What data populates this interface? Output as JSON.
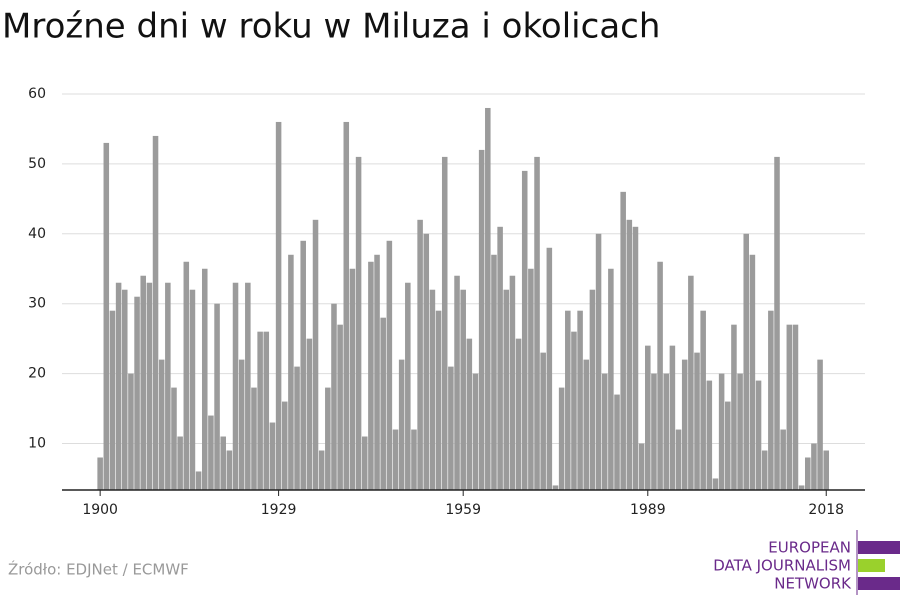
{
  "chart_data": {
    "type": "bar",
    "title": "Mroźne dni w roku w Miluza i okolicach",
    "x": [
      1900,
      1901,
      1902,
      1903,
      1904,
      1905,
      1906,
      1907,
      1908,
      1909,
      1910,
      1911,
      1912,
      1913,
      1914,
      1915,
      1916,
      1917,
      1918,
      1919,
      1920,
      1921,
      1922,
      1923,
      1924,
      1925,
      1926,
      1927,
      1928,
      1929,
      1930,
      1931,
      1932,
      1933,
      1934,
      1935,
      1936,
      1937,
      1938,
      1939,
      1940,
      1941,
      1942,
      1943,
      1944,
      1945,
      1946,
      1947,
      1948,
      1949,
      1950,
      1951,
      1952,
      1953,
      1954,
      1955,
      1956,
      1957,
      1958,
      1959,
      1960,
      1961,
      1962,
      1963,
      1964,
      1965,
      1966,
      1967,
      1968,
      1969,
      1970,
      1971,
      1972,
      1973,
      1974,
      1975,
      1976,
      1977,
      1978,
      1979,
      1980,
      1981,
      1982,
      1983,
      1984,
      1985,
      1986,
      1987,
      1988,
      1989,
      1990,
      1991,
      1992,
      1993,
      1994,
      1995,
      1996,
      1997,
      1998,
      1999,
      2000,
      2001,
      2002,
      2003,
      2004,
      2005,
      2006,
      2007,
      2008,
      2009,
      2010,
      2011,
      2012,
      2013,
      2014,
      2015,
      2016,
      2017,
      2018
    ],
    "values": [
      8,
      53,
      29,
      33,
      32,
      20,
      31,
      34,
      33,
      54,
      22,
      33,
      18,
      11,
      36,
      32,
      6,
      35,
      14,
      30,
      11,
      9,
      33,
      22,
      33,
      18,
      26,
      26,
      13,
      56,
      16,
      37,
      21,
      39,
      25,
      42,
      9,
      18,
      30,
      27,
      56,
      35,
      51,
      11,
      36,
      37,
      28,
      39,
      12,
      22,
      33,
      12,
      42,
      40,
      32,
      29,
      51,
      21,
      34,
      32,
      25,
      20,
      52,
      58,
      37,
      41,
      32,
      34,
      25,
      49,
      35,
      51,
      23,
      38,
      4,
      18,
      29,
      26,
      29,
      22,
      32,
      40,
      20,
      35,
      17,
      46,
      42,
      41,
      10,
      24,
      20,
      36,
      20,
      24,
      12,
      22,
      34,
      23,
      29,
      19,
      5,
      20,
      16,
      27,
      20,
      40,
      37,
      19,
      9,
      29,
      51,
      12,
      27,
      27,
      4,
      8,
      10,
      22,
      9
    ],
    "color": "#9b9b9b",
    "xlim": [
      1893.8,
      2024.3
    ],
    "xticks": [
      1900,
      1929,
      1959,
      1989,
      2018
    ],
    "ylim": [
      3.35,
      62
    ],
    "yticks": [
      10,
      20,
      30,
      40,
      50,
      60
    ],
    "grid": true
  },
  "source": "Źródło: EDJNet / ECMWF",
  "logo": {
    "lines": [
      "EUROPEAN",
      "DATA JOURNALISM",
      "NETWORK"
    ]
  }
}
